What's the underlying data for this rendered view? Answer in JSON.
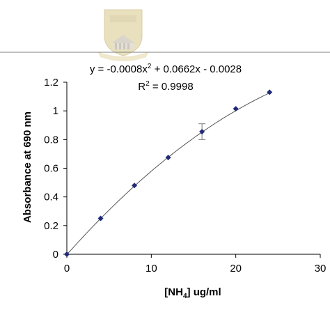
{
  "chart_data": {
    "type": "scatter",
    "equation": {
      "prefix": "y = -0.0008x",
      "exp": "2",
      "rest": " + 0.0662x - 0.0028",
      "r_label": "R",
      "r_exp": "2",
      "r_value": " = 0.9998"
    },
    "xlabel": {
      "main": "[NH",
      "sub": "4",
      "end": "] ug/ml"
    },
    "ylabel": "Absorbance at 690 nm",
    "xlim": [
      0,
      30
    ],
    "ylim": [
      0,
      1.2
    ],
    "x_ticks": [
      0,
      10,
      20,
      30
    ],
    "y_ticks": [
      0,
      0.2,
      0.4,
      0.6,
      0.8,
      1,
      1.2
    ],
    "grid": false,
    "series": [
      {
        "marker": "diamond",
        "color": "#1f2a78",
        "points": [
          {
            "x": 0,
            "y": 0
          },
          {
            "x": 4,
            "y": 0.25
          },
          {
            "x": 8,
            "y": 0.48
          },
          {
            "x": 12,
            "y": 0.675
          },
          {
            "x": 16,
            "y": 0.855,
            "err": 0.055
          },
          {
            "x": 20,
            "y": 1.015
          },
          {
            "x": 24,
            "y": 1.13
          }
        ]
      }
    ],
    "trendline": {
      "type": "polynomial",
      "a": -0.0008,
      "b": 0.0662,
      "c": -0.0028,
      "color": "#555555"
    }
  }
}
